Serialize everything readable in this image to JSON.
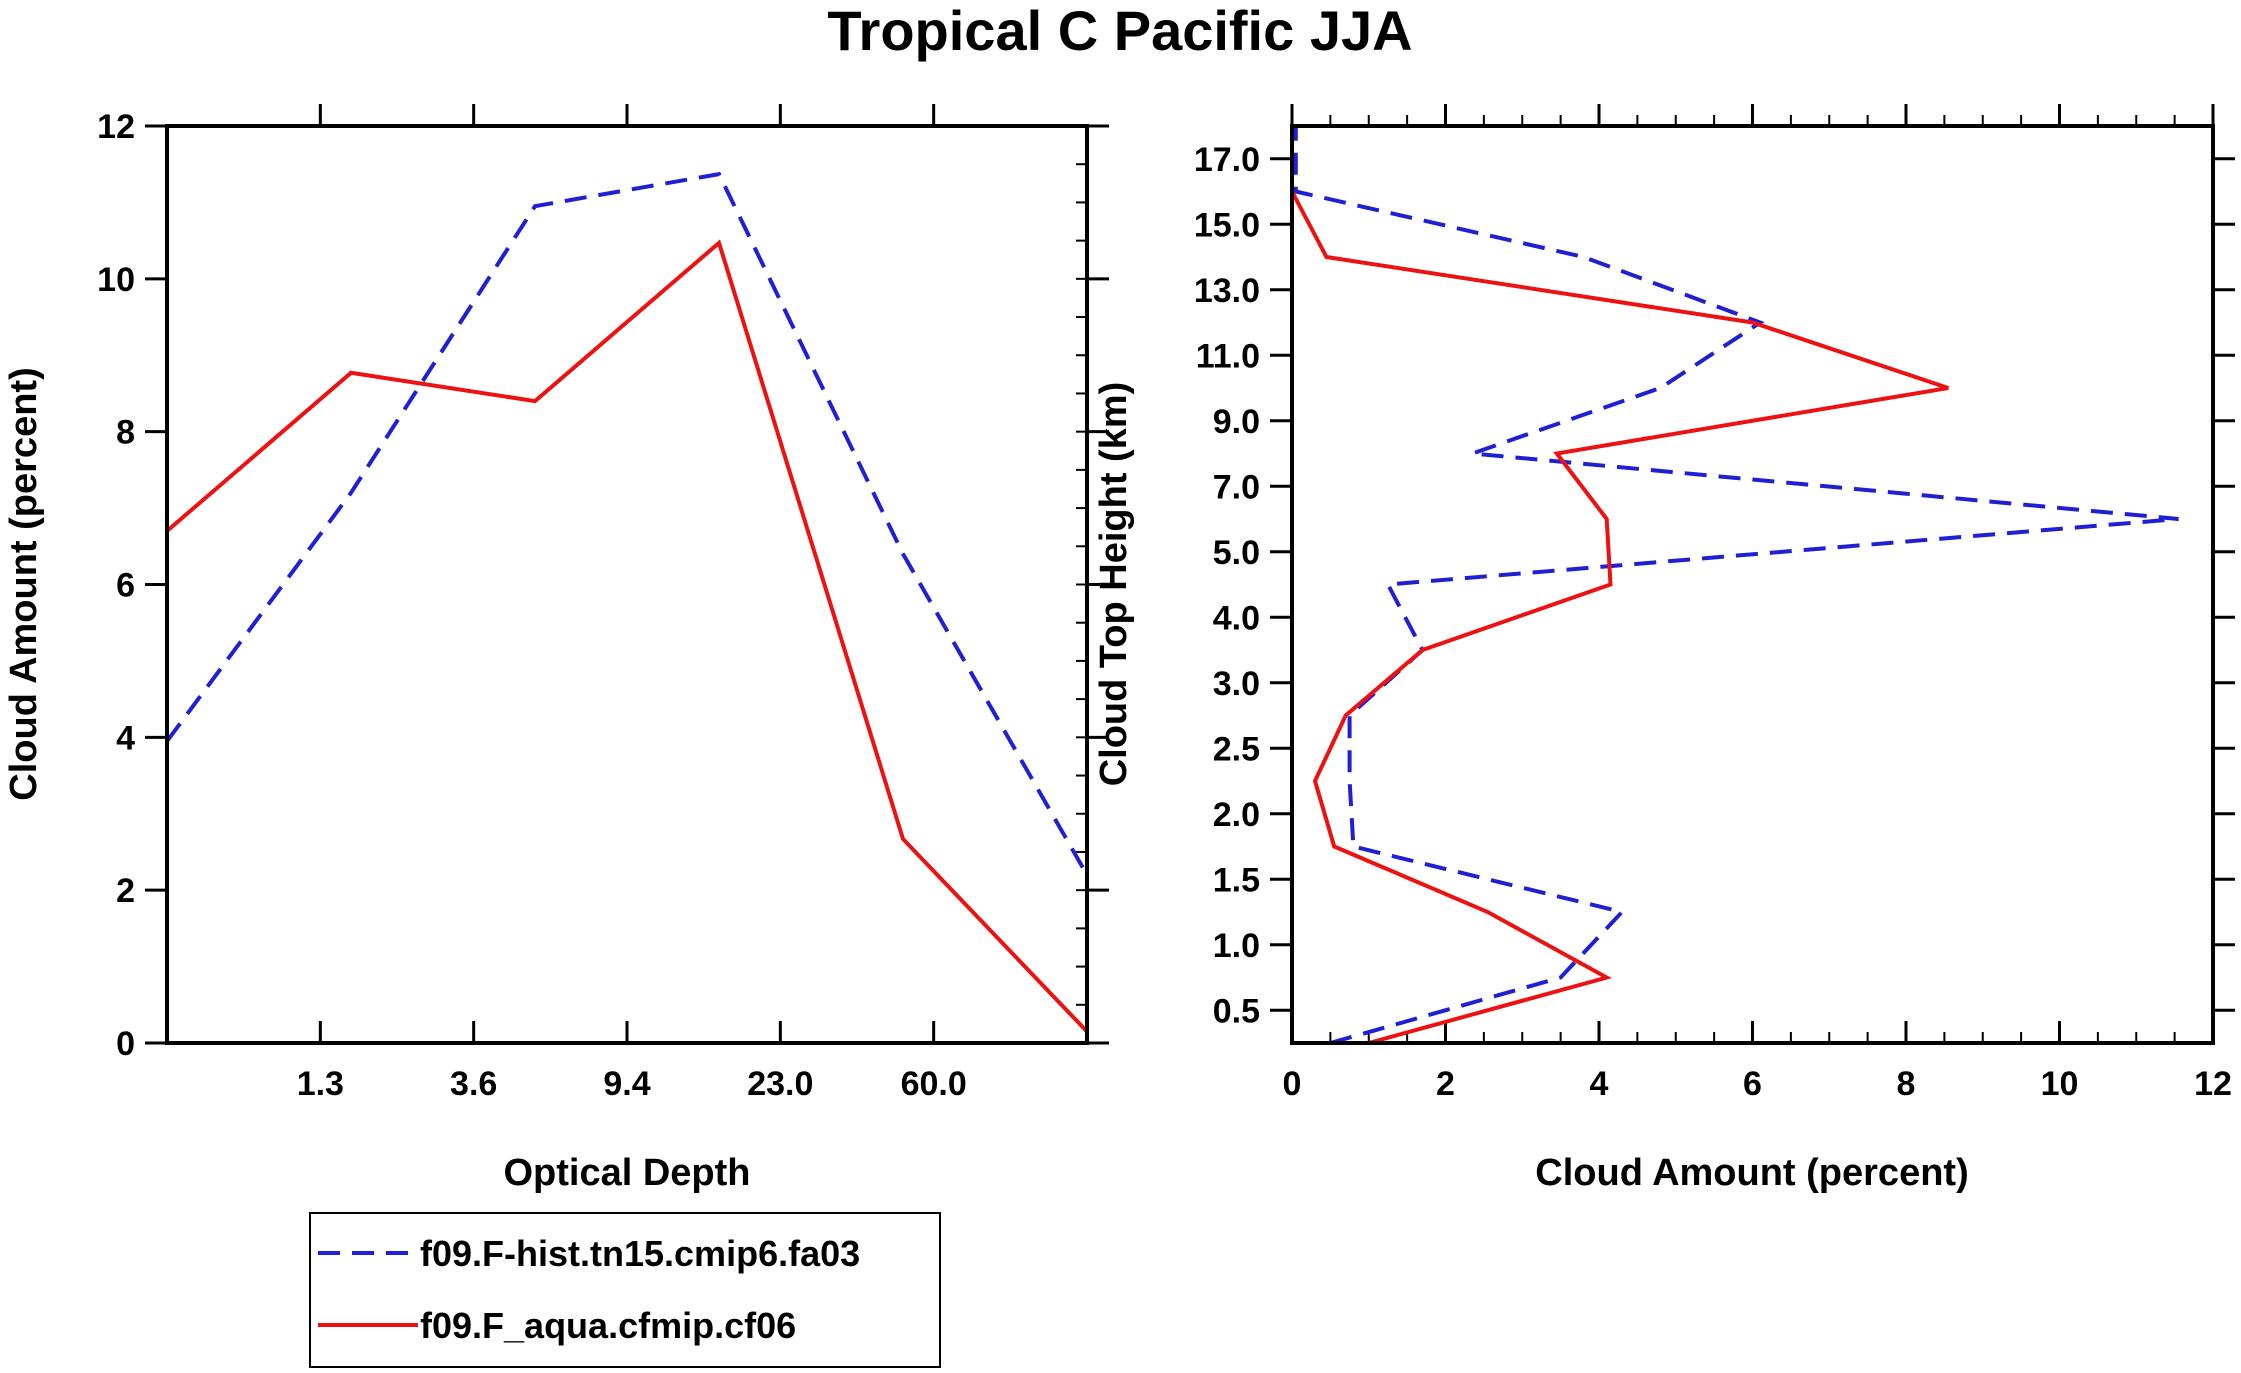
{
  "title": "Tropical C Pacific JJA",
  "legend": {
    "entries": [
      {
        "label": "f09.F-hist.tn15.cmip6.fa03",
        "color": "#1f1fd6",
        "style": "dashed"
      },
      {
        "label": "f09.F_aqua.cfmip.cf06",
        "color": "#ee1111",
        "style": "solid"
      }
    ]
  },
  "chart_data": [
    {
      "type": "line",
      "title": "",
      "xlabel": "Optical Depth",
      "ylabel": "Cloud Amount (percent)",
      "x_tick_labels": [
        "1.3",
        "3.6",
        "9.4",
        "23.0",
        "60.0"
      ],
      "x_tick_positions": [
        1,
        2,
        3,
        4,
        5
      ],
      "xlim": [
        0,
        6
      ],
      "ylim": [
        0,
        12
      ],
      "y_tick_labels": [
        "0",
        "2",
        "4",
        "6",
        "8",
        "10",
        "12"
      ],
      "y_tick_values": [
        0,
        2,
        4,
        6,
        8,
        10,
        12
      ],
      "series": [
        {
          "name": "f09.F-hist.tn15.cmip6.fa03",
          "color": "#1f1fd6",
          "dashed": true,
          "x": [
            0,
            1.2,
            2.4,
            3.6,
            4.8,
            6.0
          ],
          "y": [
            3.95,
            7.2,
            10.95,
            11.37,
            6.4,
            2.2
          ]
        },
        {
          "name": "f09.F_aqua.cfmip.cf06",
          "color": "#ee1111",
          "dashed": false,
          "x": [
            0,
            1.2,
            2.4,
            3.6,
            4.8,
            6.0
          ],
          "y": [
            6.7,
            8.77,
            8.4,
            10.47,
            2.67,
            0.15
          ]
        }
      ]
    },
    {
      "type": "line",
      "title": "",
      "xlabel": "Cloud Amount (percent)",
      "ylabel": "Cloud Top Height (km)",
      "xlim": [
        0,
        12
      ],
      "x_tick_labels": [
        "0",
        "2",
        "4",
        "6",
        "8",
        "10",
        "12"
      ],
      "x_tick_values": [
        0,
        2,
        4,
        6,
        8,
        10,
        12
      ],
      "ylim": [
        0,
        14
      ],
      "y_tick_labels": [
        "0.5",
        "1.0",
        "1.5",
        "2.0",
        "2.5",
        "3.0",
        "4.0",
        "5.0",
        "7.0",
        "9.0",
        "11.0",
        "13.0",
        "15.0",
        "17.0"
      ],
      "y_tick_positions": [
        0.5,
        1.5,
        2.5,
        3.5,
        4.5,
        5.5,
        6.5,
        7.5,
        8.5,
        9.5,
        10.5,
        11.5,
        12.5,
        13.5
      ],
      "series": [
        {
          "name": "f09.F-hist.tn15.cmip6.fa03",
          "color": "#1f1fd6",
          "dashed": true,
          "x": [
            0.5,
            3.5,
            4.3,
            0.8,
            0.75,
            0.75,
            1.7,
            1.25,
            11.55,
            2.35,
            4.8,
            6.1,
            3.8,
            0.05,
            0.05
          ],
          "y": [
            0,
            1,
            2,
            3,
            4,
            5,
            6,
            7,
            8,
            9,
            10,
            11,
            12,
            13,
            14
          ]
        },
        {
          "name": "f09.F_aqua.cfmip.cf06",
          "color": "#ee1111",
          "dashed": false,
          "x": [
            1.0,
            4.1,
            2.55,
            0.55,
            0.3,
            0.7,
            1.7,
            4.15,
            4.1,
            3.45,
            8.55,
            6.0,
            0.45,
            0.0
          ],
          "y": [
            0,
            1,
            2,
            3,
            4,
            5,
            6,
            7,
            8,
            9,
            10,
            11,
            12,
            13
          ]
        }
      ]
    }
  ]
}
